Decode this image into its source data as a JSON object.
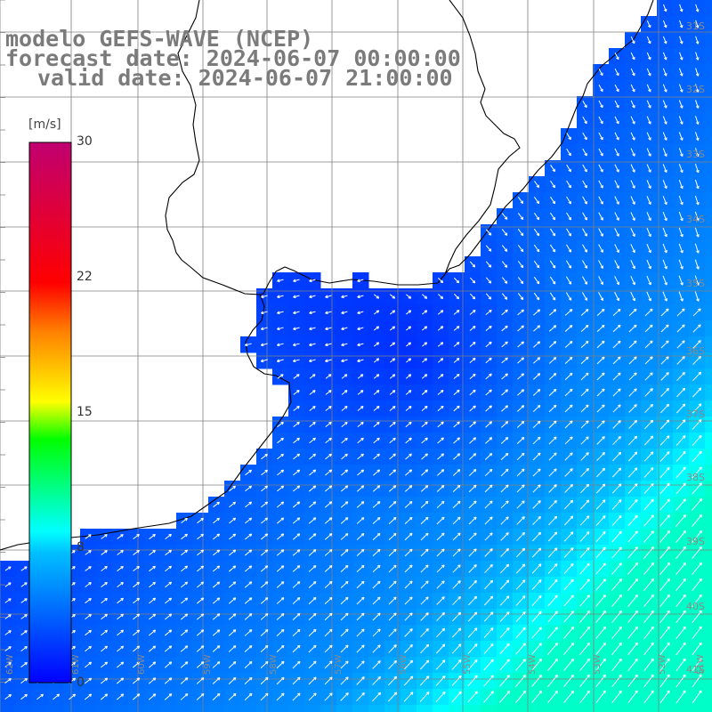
{
  "header": {
    "model": "modelo GEFS-WAVE (NCEP)",
    "forecast": "forecast date: 2024-06-07 00:00:00",
    "valid": "valid date: 2024-06-07 21:00:00"
  },
  "colorbar": {
    "unit": "[m/s]",
    "ticks": [
      "30",
      "22",
      "15",
      "8",
      "0"
    ],
    "tick_values": [
      30,
      22,
      15,
      8,
      0
    ],
    "colors": [
      "#0000ff",
      "#00ffff",
      "#00ff00",
      "#ffff00",
      "#ff8000",
      "#ff0000",
      "#c00070"
    ]
  },
  "map": {
    "longitude_labels": [
      "62W",
      "61W",
      "60W",
      "59W",
      "58W",
      "57W",
      "56W",
      "55W",
      "54W",
      "53W",
      "52W",
      "51W"
    ],
    "latitude_labels": [
      "31S",
      "32S",
      "33S",
      "34S",
      "35S",
      "36S",
      "37S",
      "38S",
      "39S",
      "40S",
      "41S"
    ],
    "colors": {
      "land": "#ffffff",
      "grid": "#808080",
      "coastline": "#000000",
      "arrows": "#ffffff"
    }
  }
}
